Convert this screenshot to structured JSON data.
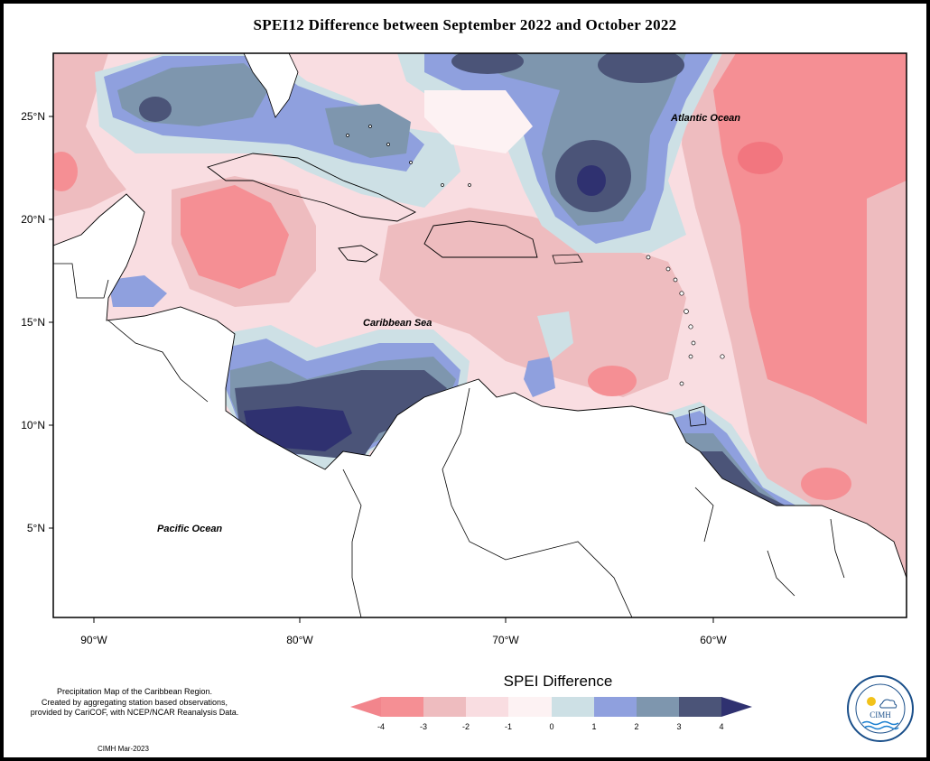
{
  "title": "SPEI12 Difference between September 2022 and October 2022",
  "map": {
    "lat_ticks": [
      "25°N",
      "20°N",
      "15°N",
      "10°N",
      "5°N"
    ],
    "lon_ticks": [
      "90°W",
      "80°W",
      "70°W",
      "60°W"
    ],
    "ocean_labels": {
      "atlantic": "Atlantic Ocean",
      "caribbean": "Caribbean Sea",
      "pacific": "Pacific Ocean"
    }
  },
  "legend": {
    "title": "SPEI Difference",
    "ticks": [
      "-4",
      "-3",
      "-2",
      "-1",
      "0",
      "1",
      "2",
      "3",
      "4"
    ],
    "colors": [
      "#f58f94",
      "#eebcbf",
      "#f9dde1",
      "#fdf2f3",
      "#cde0e5",
      "#8fa0de",
      "#7e96ae",
      "#4b5478"
    ],
    "arrow_left_color": "#f2858c",
    "arrow_right_color": "#2f3170"
  },
  "credit": {
    "line1": "Precipitation Map of the Caribbean Region.",
    "line2": "Created by aggregating station based observations,",
    "line3": "provided by CariCOF, with NCEP/NCAR Reanalysis Data."
  },
  "footer_date": "CIMH Mar-2023",
  "logo": {
    "abbr": "CIMH",
    "ring_text": "Caribbean Institute for Meteorology and Hydrology"
  }
}
